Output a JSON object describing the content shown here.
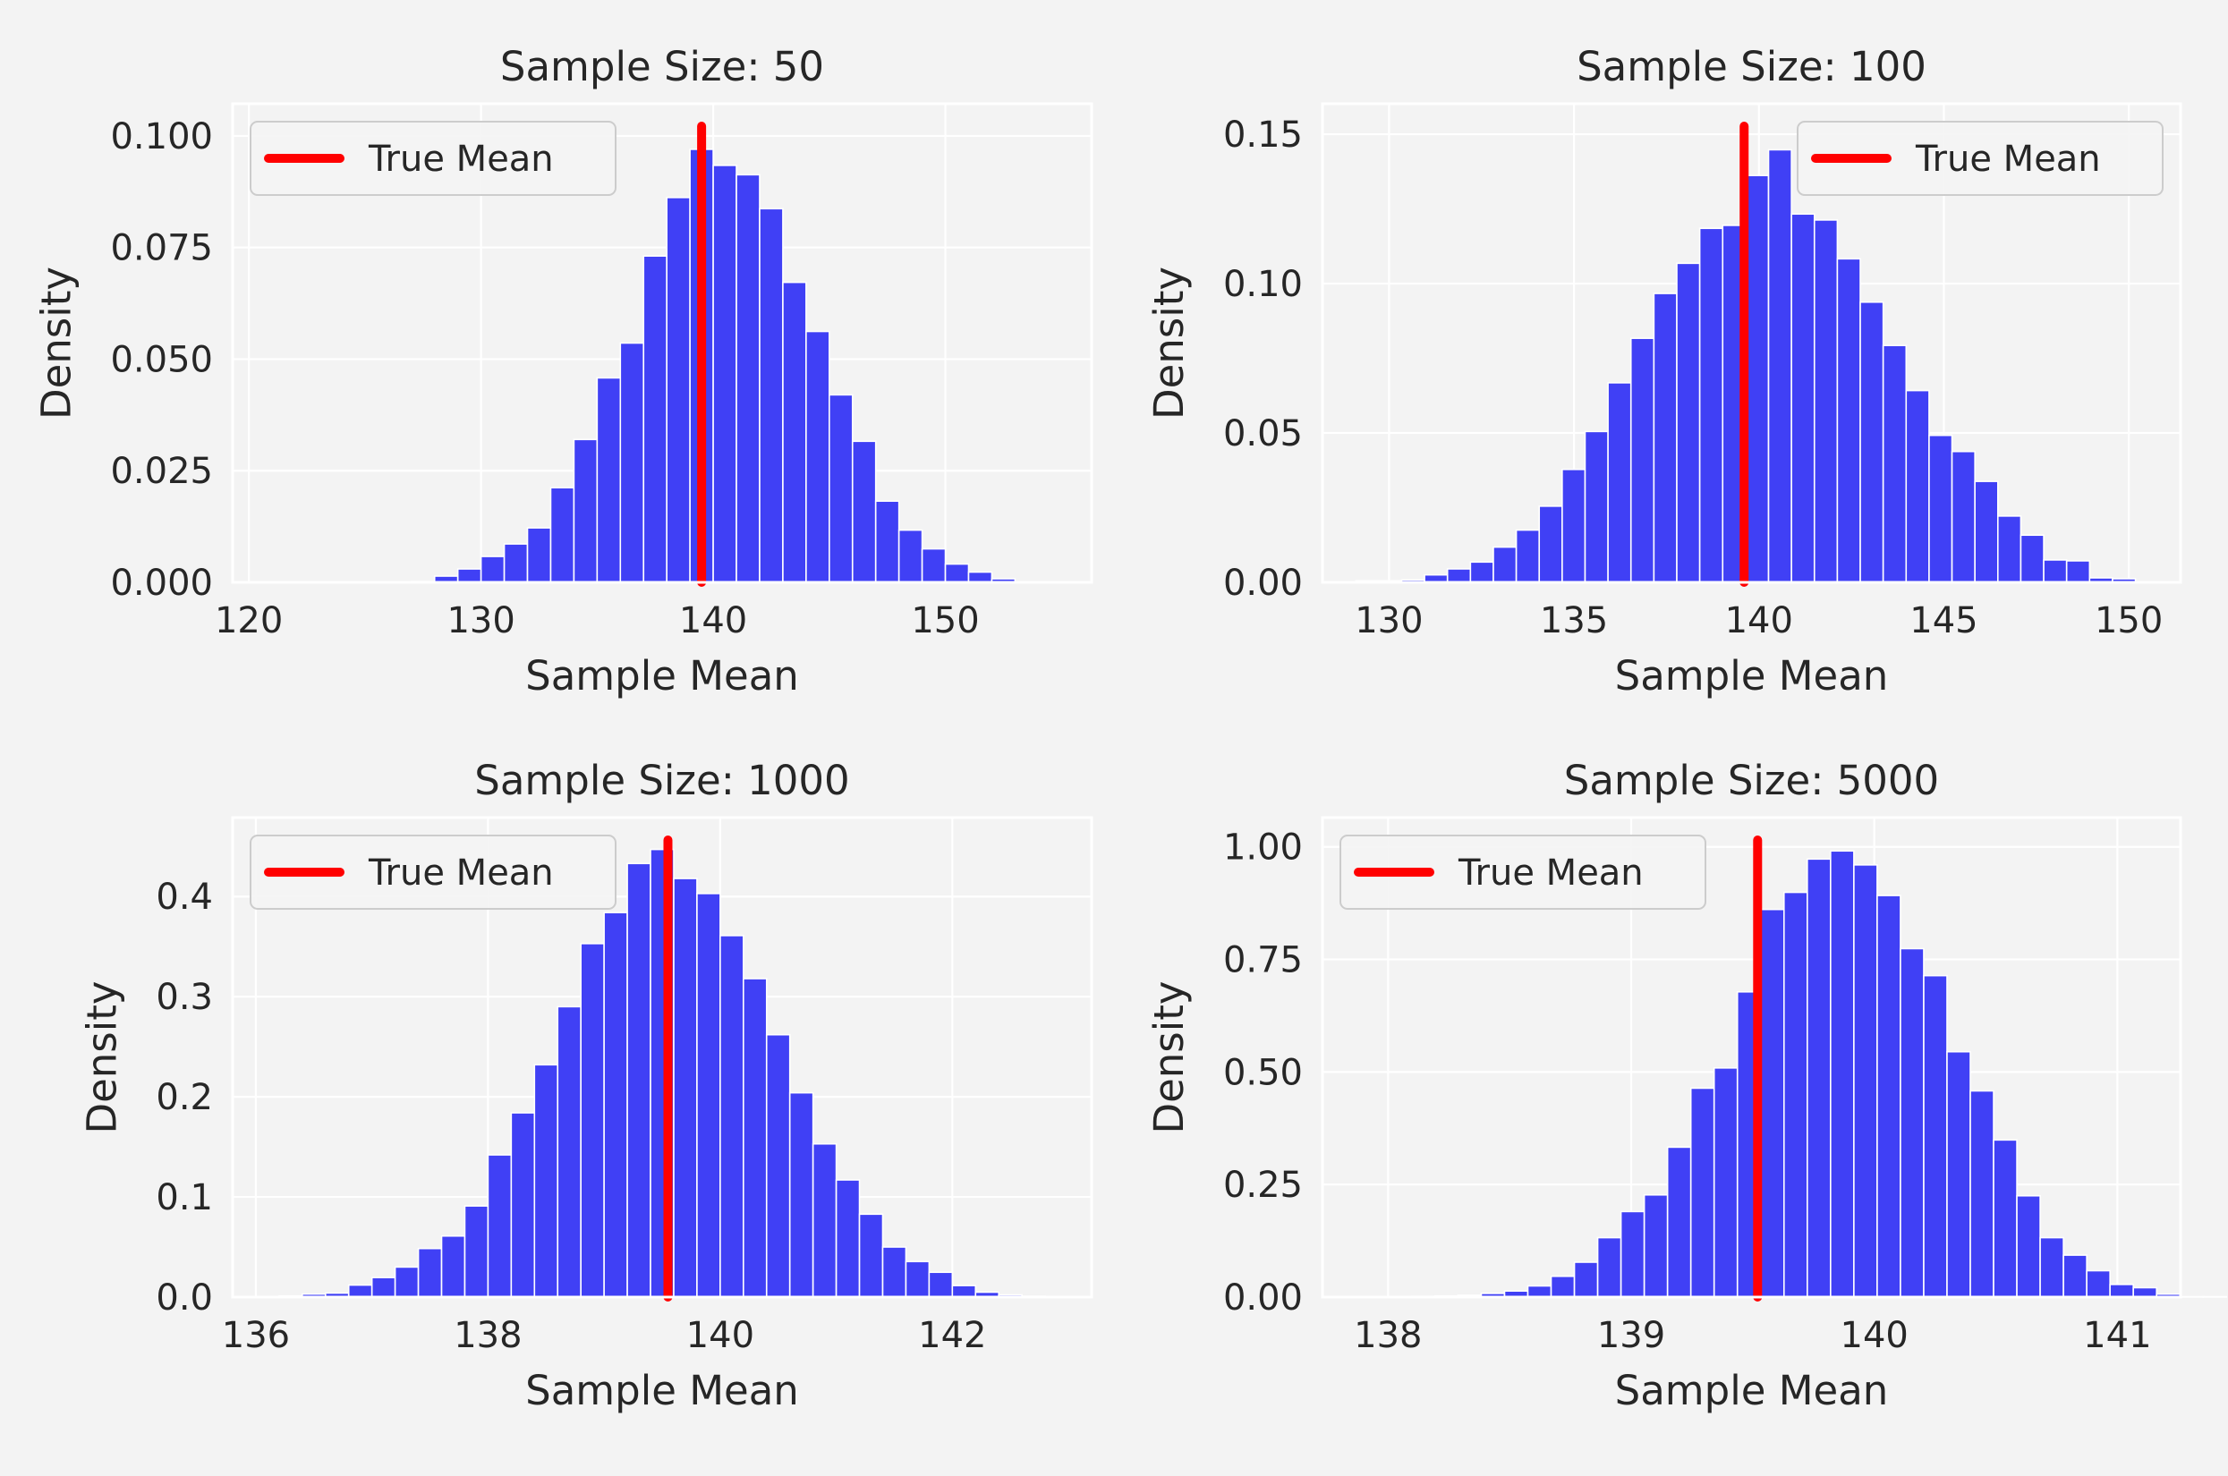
{
  "colors": {
    "page_bg": "#f3f3f3",
    "panel_bg": "#f3f3f3",
    "grid": "#ffffff",
    "bar": "#4040f5",
    "bar_edge": "#ffffff",
    "true_mean": "#ff0000",
    "text": "#262626",
    "legend_bg": "#f3f3f3",
    "legend_edge": "#cccccc"
  },
  "chart_data": [
    {
      "type": "bar",
      "title": "Sample Size: 50",
      "xlabel": "Sample Mean",
      "ylabel": "Density",
      "xlim": [
        119.3,
        156.3
      ],
      "ylim": [
        0,
        0.1072
      ],
      "xticks": [
        120,
        130,
        140,
        150
      ],
      "xtick_labels": [
        "120",
        "130",
        "140",
        "150"
      ],
      "yticks": [
        0,
        0.025,
        0.05,
        0.075,
        0.1
      ],
      "ytick_labels": [
        "0.000",
        "0.025",
        "0.050",
        "0.075",
        "0.100"
      ],
      "grid": true,
      "legend": {
        "position": "top-left",
        "label": "True Mean"
      },
      "true_mean": 139.5,
      "bins": {
        "start": 121.0,
        "width": 1.0,
        "values": [
          0,
          0,
          0,
          0,
          0,
          0,
          0.0002,
          0.0014,
          0.003,
          0.0058,
          0.0086,
          0.0122,
          0.0212,
          0.032,
          0.0458,
          0.0536,
          0.0731,
          0.0862,
          0.097,
          0.0934,
          0.0913,
          0.0837,
          0.0672,
          0.0562,
          0.042,
          0.0316,
          0.0182,
          0.0117,
          0.0075,
          0.0041,
          0.0023,
          0.0008
        ]
      }
    },
    {
      "type": "bar",
      "title": "Sample Size: 100",
      "xlabel": "Sample Mean",
      "ylabel": "Density",
      "xlim": [
        128.2,
        151.4
      ],
      "ylim": [
        0,
        0.1602
      ],
      "xticks": [
        130,
        135,
        140,
        145,
        150
      ],
      "xtick_labels": [
        "130",
        "135",
        "140",
        "145",
        "150"
      ],
      "yticks": [
        0,
        0.05,
        0.1,
        0.15
      ],
      "ytick_labels": [
        "0.00",
        "0.05",
        "0.10",
        "0.15"
      ],
      "grid": true,
      "legend": {
        "position": "top-right",
        "label": "True Mean"
      },
      "true_mean": 139.6,
      "bins": {
        "start": 129.1,
        "width": 0.62,
        "values": [
          0.0005,
          0.0005,
          0.0008,
          0.0025,
          0.0045,
          0.0068,
          0.0118,
          0.0175,
          0.0255,
          0.0378,
          0.0505,
          0.0668,
          0.0817,
          0.0967,
          0.1068,
          0.1185,
          0.1195,
          0.1362,
          0.1448,
          0.1233,
          0.1213,
          0.1083,
          0.0938,
          0.0793,
          0.0642,
          0.0492,
          0.0438,
          0.0338,
          0.0222,
          0.0158,
          0.0075,
          0.0072,
          0.0015,
          0.0012
        ]
      }
    },
    {
      "type": "bar",
      "title": "Sample Size: 1000",
      "xlabel": "Sample Mean",
      "ylabel": "Density",
      "xlim": [
        135.8,
        143.2
      ],
      "ylim": [
        0,
        0.4788
      ],
      "xticks": [
        136,
        138,
        140,
        142
      ],
      "xtick_labels": [
        "136",
        "138",
        "140",
        "142"
      ],
      "yticks": [
        0,
        0.1,
        0.2,
        0.3,
        0.4
      ],
      "ytick_labels": [
        "0.0",
        "0.1",
        "0.2",
        "0.3",
        "0.4"
      ],
      "grid": true,
      "legend": {
        "position": "top-left",
        "label": "True Mean"
      },
      "true_mean": 139.55,
      "bins": {
        "start": 136.0,
        "width": 0.2,
        "values": [
          0.0005,
          0.0012,
          0.003,
          0.004,
          0.012,
          0.0195,
          0.03,
          0.0485,
          0.061,
          0.091,
          0.142,
          0.184,
          0.232,
          0.29,
          0.353,
          0.384,
          0.433,
          0.447,
          0.418,
          0.403,
          0.361,
          0.318,
          0.262,
          0.204,
          0.153,
          0.117,
          0.0828,
          0.05,
          0.0355,
          0.0248,
          0.0115,
          0.0049,
          0.0022,
          0.0008
        ]
      }
    },
    {
      "type": "bar",
      "title": "Sample Size: 5000",
      "xlabel": "Sample Mean",
      "ylabel": "Density",
      "xlim": [
        137.73,
        141.26
      ],
      "ylim": [
        0,
        1.065
      ],
      "xticks": [
        138,
        139,
        140,
        141
      ],
      "xtick_labels": [
        "138",
        "139",
        "140",
        "141"
      ],
      "yticks": [
        0,
        0.25,
        0.5,
        0.75,
        1.0
      ],
      "ytick_labels": [
        "0.00",
        "0.25",
        "0.50",
        "0.75",
        "1.00"
      ],
      "grid": true,
      "legend": {
        "position": "top-left",
        "label": "True Mean"
      },
      "true_mean": 139.52,
      "bins": {
        "start": 138.0,
        "width": 0.0958,
        "values": [
          0.001,
          0.0015,
          0.0025,
          0.004,
          0.0082,
          0.0135,
          0.0248,
          0.0462,
          0.0775,
          0.132,
          0.19,
          0.227,
          0.333,
          0.464,
          0.509,
          0.678,
          0.861,
          0.899,
          0.973,
          0.991,
          0.96,
          0.892,
          0.774,
          0.714,
          0.545,
          0.458,
          0.349,
          0.225,
          0.132,
          0.0932,
          0.0586,
          0.0281,
          0.0209,
          0.0066,
          0.001,
          0.001
        ]
      }
    }
  ]
}
